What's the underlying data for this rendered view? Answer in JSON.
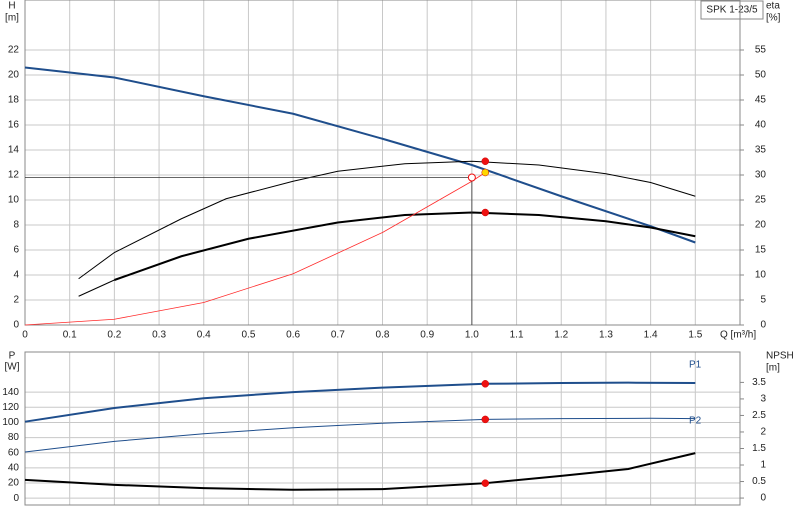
{
  "chart_data": [
    {
      "type": "line",
      "title": "SPK 1-23/5",
      "ylabel": "H",
      "yunit": "[m]",
      "y2label": "eta",
      "y2unit": "[%]",
      "xlabel": "Q [m³/h]",
      "xlim": [
        0,
        1.6
      ],
      "xticks": [
        0,
        0.1,
        0.2,
        0.3,
        0.4,
        0.5,
        0.6,
        0.7,
        0.8,
        0.9,
        {
          "value": 1.0,
          "label": "1.0"
        },
        1.1,
        1.2,
        1.3,
        1.4,
        1.5
      ],
      "ylim": [
        0,
        26
      ],
      "yticks": [
        0,
        2,
        4,
        6,
        8,
        10,
        12,
        14,
        16,
        18,
        20,
        22
      ],
      "y2lim": [
        0,
        65
      ],
      "y2ticks": [
        0,
        5,
        10,
        15,
        20,
        25,
        30,
        35,
        40,
        45,
        50,
        55
      ],
      "grid": true,
      "series": [
        {
          "color": "#1f4e8c",
          "width": 2,
          "x": [
            0,
            0.2,
            0.4,
            0.6,
            0.8,
            1.0,
            1.2,
            1.4,
            1.5
          ],
          "values": [
            20.6,
            19.8,
            18.3,
            16.9,
            14.9,
            12.8,
            10.3,
            7.9,
            6.6
          ]
        },
        {
          "axis": "y2",
          "color": "#000000",
          "width": 1,
          "x": [
            0.12,
            0.2,
            0.35,
            0.45,
            0.6,
            0.7,
            0.85,
            1.0,
            1.15,
            1.3,
            1.4,
            1.5
          ],
          "values": [
            9.25,
            14.5,
            21.25,
            25.25,
            28.75,
            30.75,
            32.25,
            32.75,
            32,
            30.25,
            28.5,
            25.75
          ]
        },
        {
          "axis": "y2",
          "color": "#000000",
          "width": 1,
          "x": [
            0.12,
            0.2
          ],
          "values": [
            5.75,
            9
          ]
        },
        {
          "axis": "y2",
          "color": "#000000",
          "width": 2,
          "x": [
            0.2,
            0.35,
            0.5,
            0.7,
            0.85,
            1.0,
            1.15,
            1.3,
            1.4,
            1.5
          ],
          "values": [
            9,
            13.75,
            17.25,
            20.5,
            22,
            22.5,
            22,
            20.75,
            19.5,
            17.75
          ]
        },
        {
          "color": "#ff2a2a",
          "width": 0.8,
          "x": [
            0,
            0.2,
            0.4,
            0.6,
            0.8,
            1.0,
            1.03
          ],
          "values": [
            0,
            0.46,
            1.8,
            4.1,
            7.4,
            11.5,
            12.2
          ]
        }
      ],
      "markers": [
        {
          "axis": "y2",
          "x": 1.03,
          "y": 32.75,
          "color": "#ee1111",
          "style": "filled"
        },
        {
          "axis": "y2",
          "x": 1.03,
          "y": 22.5,
          "color": "#ee1111",
          "style": "filled"
        },
        {
          "x": 1.03,
          "y": 12.2,
          "color": "#ffd700",
          "style": "filled"
        },
        {
          "x": 1.0,
          "y": 11.8,
          "color": "#ee1111",
          "style": "open",
          "duty_lines": true
        }
      ]
    },
    {
      "type": "line",
      "ylabel": "P",
      "yunit": "[W]",
      "y2label": "NPSH",
      "y2unit": "[m]",
      "xlim": [
        0,
        1.6
      ],
      "xticks": [
        0,
        0.1,
        0.2,
        0.3,
        0.4,
        0.5,
        0.6,
        0.7,
        0.8,
        0.9,
        1,
        1.1,
        1.2,
        1.3,
        1.4,
        1.5
      ],
      "ylim": [
        -9,
        193
      ],
      "yticks": [
        0,
        20,
        40,
        60,
        80,
        100,
        120,
        140
      ],
      "y2lim": [
        -0.21,
        4.42
      ],
      "y2ticks": [
        0,
        0.5,
        1,
        1.5,
        2,
        2.5,
        3,
        3.5
      ],
      "grid": true,
      "series": [
        {
          "name": "P1",
          "color": "#1f4e8c",
          "width": 2,
          "x": [
            0,
            0.2,
            0.4,
            0.6,
            0.8,
            1.03,
            1.2,
            1.35,
            1.5
          ],
          "values": [
            101,
            119,
            132,
            140,
            146,
            151,
            152,
            152.5,
            152
          ]
        },
        {
          "name": "P2",
          "color": "#1f4e8c",
          "width": 1,
          "x": [
            0,
            0.2,
            0.4,
            0.6,
            0.8,
            1.03,
            1.2,
            1.4,
            1.5
          ],
          "values": [
            61,
            75,
            85,
            93,
            99,
            104,
            105,
            105.5,
            105
          ]
        },
        {
          "axis": "y2",
          "color": "#000000",
          "width": 2,
          "x": [
            0,
            0.2,
            0.4,
            0.6,
            0.8,
            1.03,
            1.2,
            1.35,
            1.5
          ],
          "values": [
            0.55,
            0.4,
            0.3,
            0.25,
            0.27,
            0.45,
            0.67,
            0.88,
            1.36
          ]
        }
      ],
      "markers": [
        {
          "x": 1.03,
          "y": 151,
          "color": "#ee1111",
          "style": "filled"
        },
        {
          "x": 1.03,
          "y": 104,
          "color": "#ee1111",
          "style": "filled"
        },
        {
          "axis": "y2",
          "x": 1.03,
          "y": 0.45,
          "color": "#ee1111",
          "style": "filled"
        }
      ]
    }
  ]
}
